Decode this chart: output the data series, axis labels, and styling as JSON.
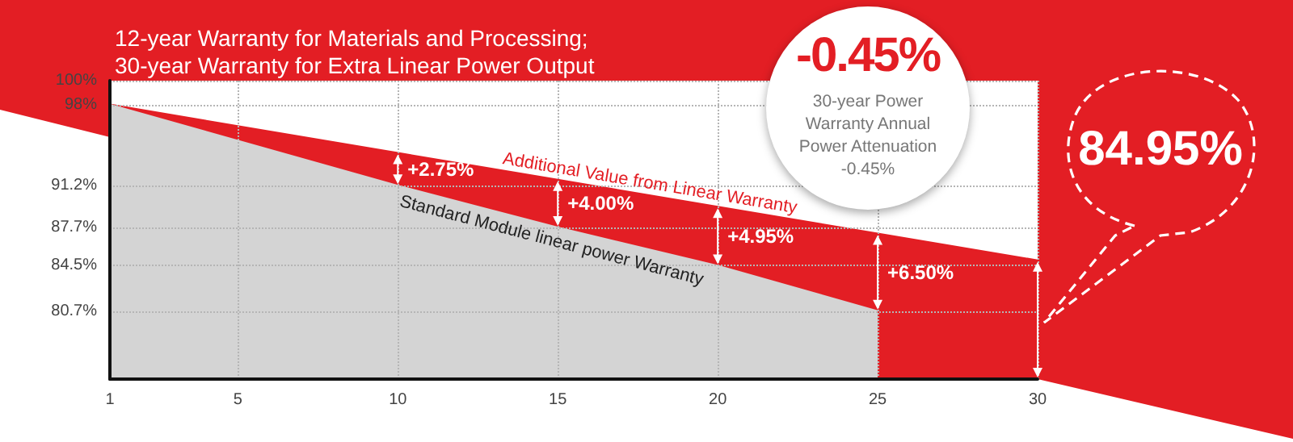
{
  "chart_data": {
    "type": "area",
    "title": "12-year Warranty for Materials and Processing; 30-year Warranty for Extra Linear Power Output",
    "series": [
      {
        "name": "Additional Value from Linear Warranty",
        "color": "#e31e24",
        "x": [
          1,
          10,
          15,
          20,
          25,
          30
        ],
        "values": [
          98,
          93.95,
          91.7,
          89.45,
          87.2,
          84.95
        ]
      },
      {
        "name": "Standard Module linear power Warranty",
        "color": "#d4d4d4",
        "x": [
          1,
          10,
          15,
          20,
          25
        ],
        "values": [
          98,
          91.2,
          87.7,
          84.5,
          80.7
        ]
      }
    ],
    "xlim": [
      1,
      30
    ],
    "xticks": [
      1,
      5,
      10,
      15,
      20,
      25,
      30
    ],
    "ylim": [
      75,
      100
    ],
    "yticks": [
      {
        "value": 100,
        "label": "100%"
      },
      {
        "value": 98,
        "label": "98%"
      },
      {
        "value": 91.2,
        "label": "91.2%"
      },
      {
        "value": 87.7,
        "label": "87.7%"
      },
      {
        "value": 84.5,
        "label": "84.5%"
      },
      {
        "value": 80.7,
        "label": "80.7%"
      }
    ],
    "grid": true,
    "legend": false,
    "marker": "none",
    "annotations": [
      "-0.45%",
      "30-year Power Warranty Annual Power Attenuation -0.45%",
      {
        "text": "+2.75%",
        "x": 10,
        "y": 93.95
      },
      {
        "text": "+4.00%",
        "x": 15,
        "y": 91.7
      },
      {
        "text": "+4.95%",
        "x": 20,
        "y": 89.45
      },
      {
        "text": "+6.50%",
        "x": 25,
        "y": 87.2
      },
      {
        "text": "84.95%",
        "x": 30,
        "y": 84.95
      }
    ]
  }
}
